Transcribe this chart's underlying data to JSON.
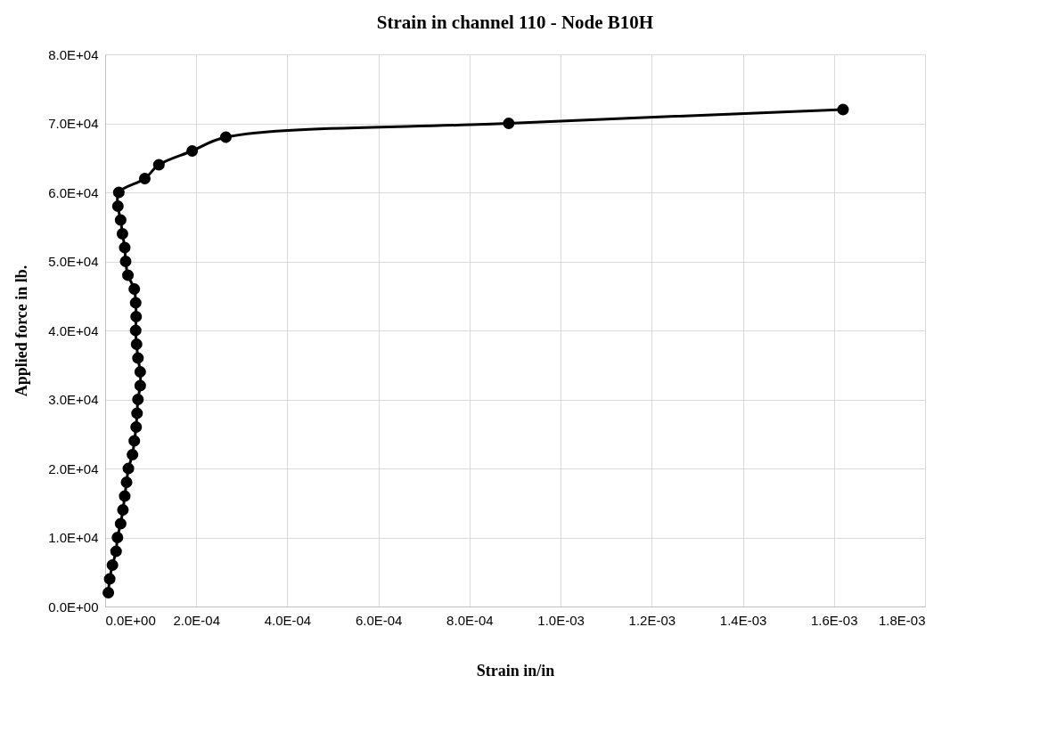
{
  "chart_data": {
    "type": "line",
    "title": "Strain in channel 110 - Node B10H",
    "xlabel": "Strain in/in",
    "ylabel": "Applied force in lb.",
    "x": [
      7e-06,
      1e-05,
      1.6e-05,
      2.4e-05,
      2.7e-05,
      3.4e-05,
      3.9e-05,
      4.3e-05,
      4.7e-05,
      5.1e-05,
      6e-05,
      6.4e-05,
      6.8e-05,
      7e-05,
      7.2e-05,
      7.7e-05,
      7.7e-05,
      7.2e-05,
      6.9e-05,
      6.7e-05,
      6.8e-05,
      6.7e-05,
      6.4e-05,
      5e-05,
      4.5e-05,
      4.3e-05,
      3.8e-05,
      3.4e-05,
      2.8e-05,
      3e-05,
      8.7e-05,
      0.000118,
      0.000191,
      0.000265,
      0.000886,
      0.00162
    ],
    "series": [
      {
        "color": "#000000",
        "values": [
          2000,
          4000,
          6000,
          8000,
          10000,
          12000,
          14000,
          16000,
          18000,
          20000,
          22000,
          24000,
          26000,
          28000,
          30000,
          32000,
          34000,
          36000,
          38000,
          40000,
          42000,
          44000,
          46000,
          48000,
          50000,
          52000,
          54000,
          56000,
          58000,
          60000,
          62000,
          64000,
          66000,
          68000,
          70000,
          72000
        ]
      }
    ],
    "xlim": [
      0,
      0.0018
    ],
    "xticks": [
      {
        "value": 0,
        "label": "0.0E+00"
      },
      {
        "value": 0.0002,
        "label": "2.0E-04"
      },
      {
        "value": 0.0004,
        "label": "4.0E-04"
      },
      {
        "value": 0.0006,
        "label": "6.0E-04"
      },
      {
        "value": 0.0008,
        "label": "8.0E-04"
      },
      {
        "value": 0.001,
        "label": "1.0E-03"
      },
      {
        "value": 0.0012,
        "label": "1.2E-03"
      },
      {
        "value": 0.0014,
        "label": "1.4E-03"
      },
      {
        "value": 0.0016,
        "label": "1.6E-03"
      },
      {
        "value": 0.0018,
        "label": "1.8E-03"
      }
    ],
    "ylim": [
      0,
      80000
    ],
    "yticks": [
      {
        "value": 0,
        "label": "0.0E+00"
      },
      {
        "value": 10000,
        "label": "1.0E+04"
      },
      {
        "value": 20000,
        "label": "2.0E+04"
      },
      {
        "value": 30000,
        "label": "3.0E+04"
      },
      {
        "value": 40000,
        "label": "4.0E+04"
      },
      {
        "value": 50000,
        "label": "5.0E+04"
      },
      {
        "value": 60000,
        "label": "6.0E+04"
      },
      {
        "value": 70000,
        "label": "7.0E+04"
      },
      {
        "value": 80000,
        "label": "8.0E+04"
      }
    ],
    "grid": true,
    "marker": "circle",
    "line_style": "solid"
  }
}
